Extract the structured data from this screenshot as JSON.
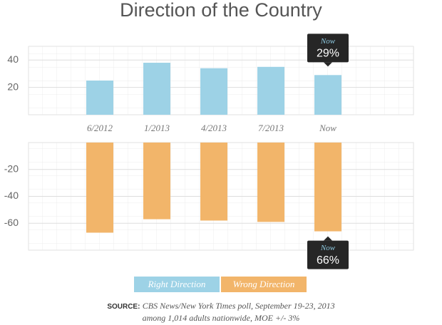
{
  "chart_data": [
    {
      "type": "bar",
      "title": "Direction of the Country",
      "categories": [
        "6/2012",
        "1/2013",
        "4/2013",
        "7/2013",
        "Now"
      ],
      "series": [
        {
          "name": "Right Direction",
          "color": "#9dd2e6",
          "values": [
            25,
            38,
            34,
            35,
            29
          ]
        }
      ],
      "ylim": [
        0,
        50
      ],
      "yticks": [
        20,
        40
      ],
      "grid": true,
      "annotation": {
        "title": "Now",
        "text": "29%"
      }
    },
    {
      "type": "bar",
      "series": [
        {
          "name": "Wrong Direction",
          "color": "#f2b56a",
          "values": [
            -67,
            -57,
            -58,
            -59,
            -66
          ]
        }
      ],
      "ylim": [
        -80,
        0
      ],
      "yticks": [
        -60,
        -40,
        -20
      ],
      "grid": true,
      "annotation": {
        "title": "Now",
        "text": "66%"
      },
      "source_label": "SOURCE:",
      "source": "CBS News/New York Times poll, September 19-23, 2013",
      "source_note": "among 1,014 adults nationwide, MOE +/- 3%"
    }
  ]
}
